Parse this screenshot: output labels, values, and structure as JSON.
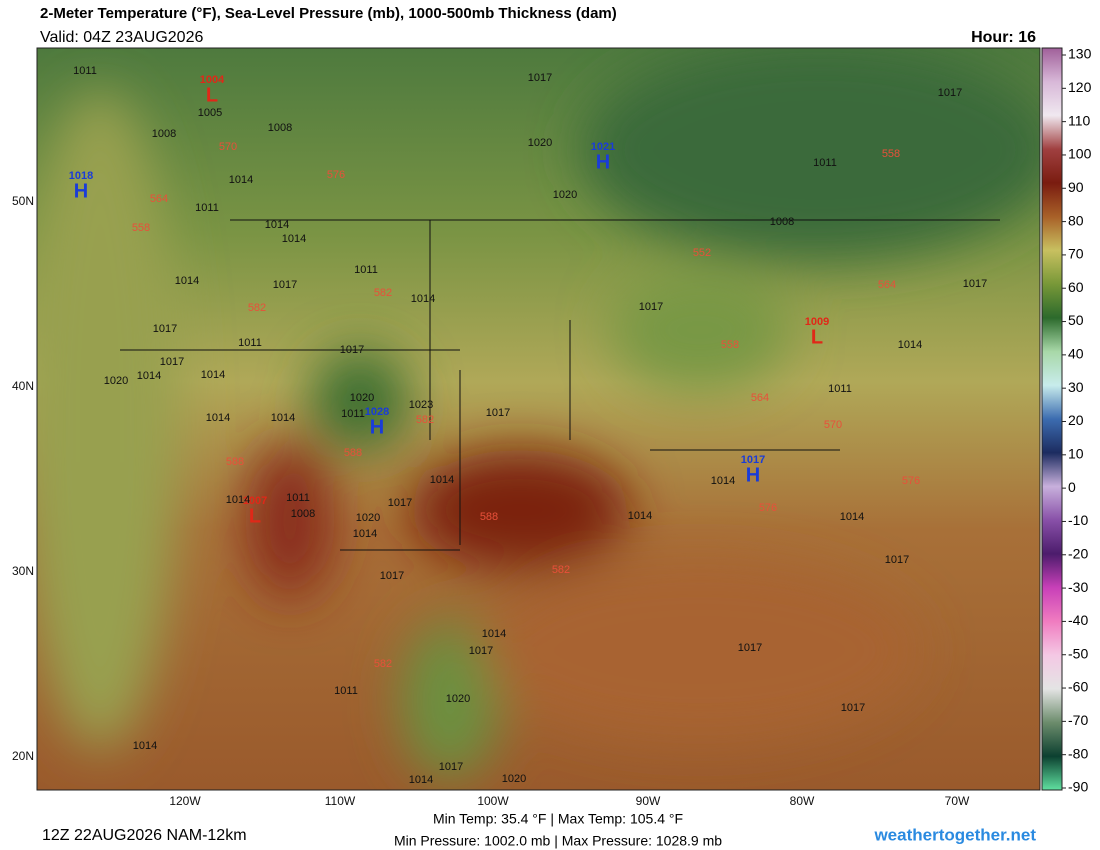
{
  "header": {
    "title": "2-Meter Temperature (°F), Sea-Level Pressure (mb), 1000-500mb Thickness (dam)",
    "valid": "Valid: 04Z 23AUG2026",
    "hour": "Hour: 16"
  },
  "map": {
    "lat_labels": [
      "50N",
      "40N",
      "30N",
      "20N"
    ],
    "lon_labels": [
      "120W",
      "110W",
      "100W",
      "90W",
      "80W",
      "70W"
    ],
    "pressure_centers": [
      {
        "symbol": "L",
        "value": "1004"
      },
      {
        "symbol": "H",
        "value": "1021"
      },
      {
        "symbol": "H",
        "value": "1018"
      },
      {
        "symbol": "H",
        "value": "1028"
      },
      {
        "symbol": "H",
        "value": "1017"
      },
      {
        "symbol": "L",
        "value": "1007"
      },
      {
        "symbol": "L",
        "value": "1009"
      }
    ],
    "isobar_labels": [
      "1011",
      "1005",
      "1008",
      "1008",
      "1017",
      "1020",
      "1020",
      "1017",
      "1011",
      "1008",
      "1011",
      "1014",
      "1014",
      "1014",
      "1011",
      "1014",
      "1017",
      "1014",
      "1017",
      "1011",
      "1017",
      "1017",
      "1014",
      "1020",
      "1014",
      "1014",
      "1014",
      "1020",
      "1023",
      "1011",
      "1017",
      "1017",
      "1017",
      "1014",
      "1011",
      "1014",
      "1014",
      "1014",
      "1014",
      "1011",
      "1008",
      "1017",
      "1020",
      "1014",
      "1017",
      "1014",
      "1017",
      "1020",
      "1011",
      "1014",
      "1017",
      "1017",
      "1017",
      "1020",
      "1017",
      "1014",
      "1014"
    ],
    "thickness_labels": [
      "570",
      "576",
      "564",
      "558",
      "582",
      "582",
      "582",
      "588",
      "588",
      "588",
      "582",
      "582",
      "552",
      "558",
      "564",
      "570",
      "576",
      "576",
      "558",
      "564"
    ]
  },
  "colorbar": {
    "ticks": [
      130,
      120,
      110,
      100,
      90,
      80,
      70,
      60,
      50,
      40,
      30,
      20,
      10,
      0,
      -10,
      -20,
      -30,
      -40,
      -50,
      -60,
      -70,
      -80,
      -90
    ],
    "colors": [
      "#a0609a",
      "#d8b8d8",
      "#f0e8f0",
      "#a04040",
      "#7a1c10",
      "#a86028",
      "#c8c060",
      "#789838",
      "#2c6a2c",
      "#a8d8a8",
      "#c8ecec",
      "#3c6cb0",
      "#1c2c60",
      "#c8b0dc",
      "#8850a8",
      "#4c1c6c",
      "#c840b8",
      "#f07cc0",
      "#f4c8e4",
      "#e4e4e4",
      "#6c8c6c",
      "#0c4030",
      "#60e0a0"
    ]
  },
  "footer": {
    "run": "12Z 22AUG2026 NAM-12km",
    "temps": "Min Temp:  35.4 °F | Max Temp: 105.4 °F",
    "pressures": "Min Pressure: 1002.0 mb | Max Pressure: 1028.9 mb",
    "credit": "weathertogether.net"
  }
}
